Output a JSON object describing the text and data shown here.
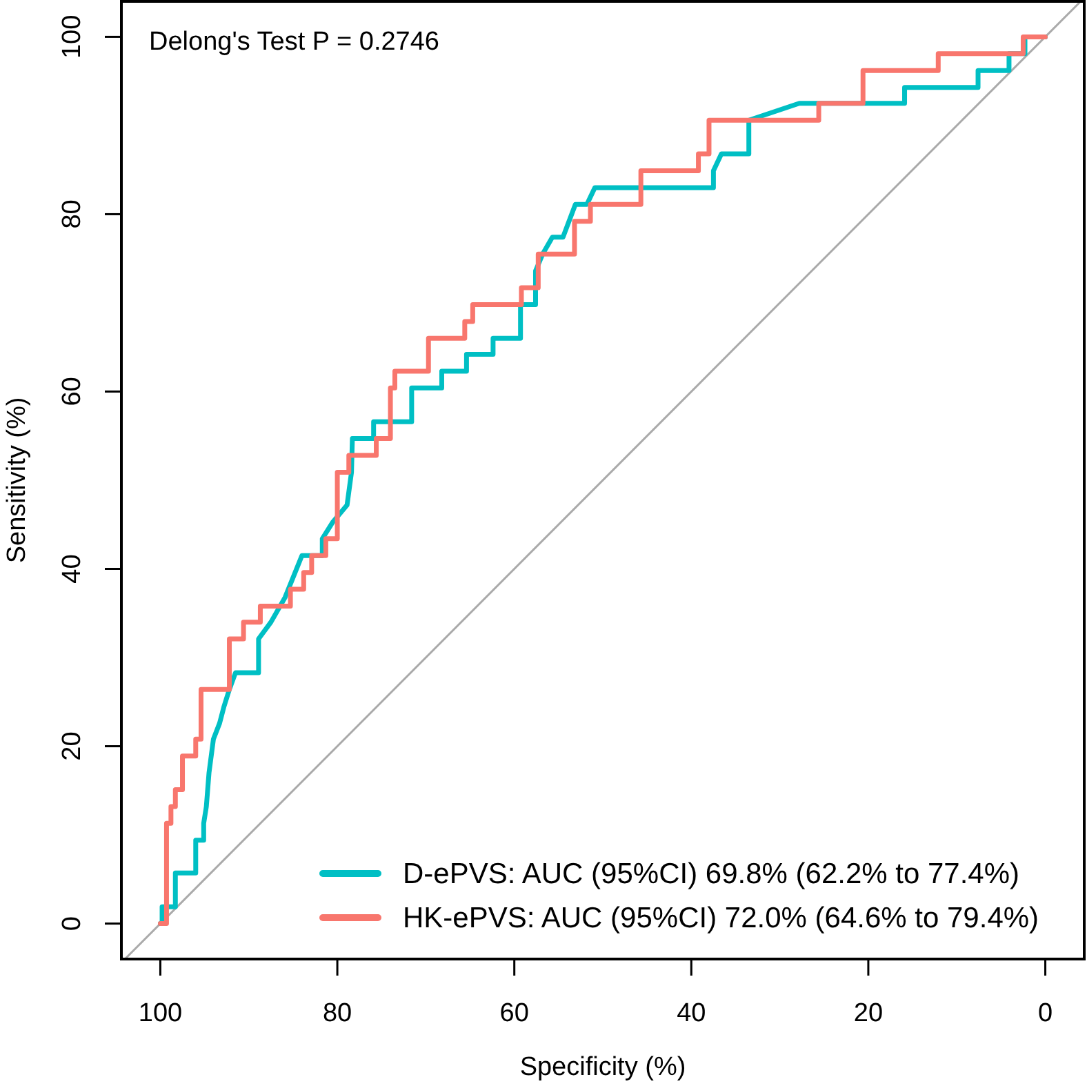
{
  "chart_data": {
    "type": "line",
    "xlabel": "Specificity (%)",
    "ylabel": "Sensitivity (%)",
    "xlim": [
      104.4,
      -4.4
    ],
    "ylim": [
      -4,
      104
    ],
    "xticks": [
      100,
      80,
      60,
      40,
      20,
      0
    ],
    "yticks": [
      0,
      20,
      40,
      60,
      80,
      100
    ],
    "grid": false,
    "legend": "bottom right",
    "line_style": "solid",
    "marker": "none",
    "annotations": [
      "Delong's Test P = 0.2746"
    ],
    "series": [
      {
        "color": "#aaaaaa",
        "x": [
          104,
          -4
        ],
        "values": [
          -4,
          104
        ]
      },
      {
        "name": "D-ePVS: AUC (95%CI) 69.8% (62.2% to 77.4%)",
        "color": "#00bfc4",
        "x": [
          100,
          99.8,
          99.8,
          98.3,
          98.3,
          96,
          96,
          95.1,
          95.1,
          94.8,
          94.5,
          94,
          93.3,
          92.8,
          92.2,
          91.5,
          88.9,
          88.9,
          87.5,
          85.9,
          84,
          81.7,
          81.7,
          80.5,
          78.9,
          78.4,
          78.3,
          75.9,
          75.9,
          71.6,
          71.6,
          68.2,
          68.2,
          65.4,
          65.4,
          62.4,
          62.4,
          59.3,
          59.3,
          57.6,
          57.6,
          56.8,
          55.7,
          54.5,
          53.1,
          51.8,
          50.9,
          37.5,
          37.5,
          36.6,
          33.5,
          33.5,
          27.8,
          15.9,
          15.9,
          7.6,
          7.6,
          4.1,
          4.1,
          2.3,
          2.3,
          0
        ],
        "values": [
          0,
          0,
          1.9,
          1.9,
          5.7,
          5.7,
          9.4,
          9.4,
          11.3,
          13.2,
          17,
          20.8,
          22.6,
          24.5,
          26.4,
          28.3,
          28.3,
          32.1,
          34,
          36.8,
          41.5,
          41.5,
          43.4,
          45.3,
          47.2,
          50.9,
          54.7,
          54.7,
          56.6,
          56.6,
          60.4,
          60.4,
          62.3,
          62.3,
          64.2,
          64.2,
          66,
          66,
          69.8,
          69.8,
          73.6,
          75.5,
          77.4,
          77.4,
          81.1,
          81.1,
          83,
          83,
          84.9,
          86.8,
          86.8,
          90.6,
          92.5,
          92.5,
          94.3,
          94.3,
          96.2,
          96.2,
          98.1,
          98.1,
          100,
          100
        ]
      },
      {
        "name": "HK-ePVS: AUC (95%CI) 72.0% (64.6% to 79.4%)",
        "color": "#f8766d",
        "x": [
          100,
          99.3,
          99.3,
          98.8,
          98.8,
          98.3,
          98.3,
          97.5,
          97.5,
          96,
          96,
          95.4,
          95.4,
          92.2,
          92.2,
          90.6,
          90.6,
          88.7,
          88.7,
          85.3,
          85.3,
          83.8,
          83.8,
          82.9,
          82.9,
          81.3,
          81.3,
          80,
          80,
          78.7,
          78.7,
          75.6,
          75.6,
          74,
          74,
          73.5,
          73.5,
          69.7,
          69.7,
          65.6,
          65.6,
          64.7,
          64.7,
          59.2,
          59.2,
          57.3,
          57.3,
          53.2,
          53.2,
          51.4,
          51.4,
          45.7,
          45.7,
          39.2,
          39.2,
          38,
          38,
          25.6,
          25.6,
          20.6,
          20.6,
          12.1,
          12.1,
          2.5,
          2.5,
          0
        ],
        "values": [
          0,
          0,
          11.3,
          11.3,
          13.2,
          13.2,
          15.1,
          15.1,
          18.9,
          18.9,
          20.8,
          20.8,
          26.4,
          26.4,
          32.1,
          32.1,
          34,
          34,
          35.8,
          35.8,
          37.7,
          37.7,
          39.6,
          39.6,
          41.5,
          41.5,
          43.4,
          43.4,
          50.9,
          50.9,
          52.8,
          52.8,
          54.7,
          54.7,
          60.4,
          60.4,
          62.3,
          62.3,
          66,
          66,
          67.9,
          67.9,
          69.8,
          69.8,
          71.7,
          71.7,
          75.5,
          75.5,
          79.2,
          79.2,
          81.1,
          81.1,
          84.9,
          84.9,
          86.8,
          86.8,
          90.6,
          90.6,
          92.5,
          92.5,
          96.2,
          96.2,
          98.1,
          98.1,
          100,
          100
        ]
      }
    ]
  }
}
